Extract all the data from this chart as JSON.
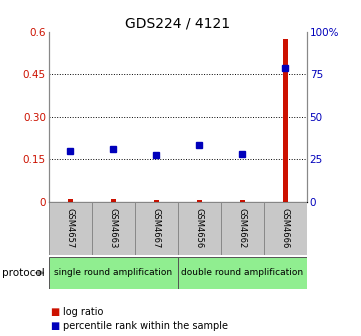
{
  "title": "GDS224 / 4121",
  "samples": [
    "GSM4657",
    "GSM4663",
    "GSM4667",
    "GSM4656",
    "GSM4662",
    "GSM4666"
  ],
  "log_ratio": [
    0.008,
    0.01,
    0.007,
    0.006,
    0.007,
    0.575
  ],
  "percentile_rank": [
    30.0,
    31.0,
    27.5,
    33.5,
    28.0,
    79.0
  ],
  "ylim_left": [
    0,
    0.6
  ],
  "ylim_right": [
    0,
    100
  ],
  "yticks_left": [
    0,
    0.15,
    0.3,
    0.45,
    0.6
  ],
  "yticks_right": [
    0,
    25,
    50,
    75,
    100
  ],
  "ytick_labels_left": [
    "0",
    "0.15",
    "0.30",
    "0.45",
    "0.6"
  ],
  "ytick_labels_right": [
    "0",
    "25",
    "50",
    "75",
    "100%"
  ],
  "left_color": "#cc1100",
  "right_color": "#0000bb",
  "bar_color": "#cc1100",
  "dot_color": "#0000bb",
  "single_bg": "#90ee90",
  "double_bg": "#90ee90",
  "sample_bg": "#c8c8c8",
  "sample_border": "#888888",
  "protocol_label": "protocol",
  "single_label": "single round amplification",
  "double_label": "double round amplification",
  "legend_log": "log ratio",
  "legend_pct": "percentile rank within the sample",
  "title_fontsize": 10,
  "tick_fontsize": 7.5,
  "sample_fontsize": 6.0,
  "proto_fontsize": 6.5,
  "legend_fontsize": 7.0
}
